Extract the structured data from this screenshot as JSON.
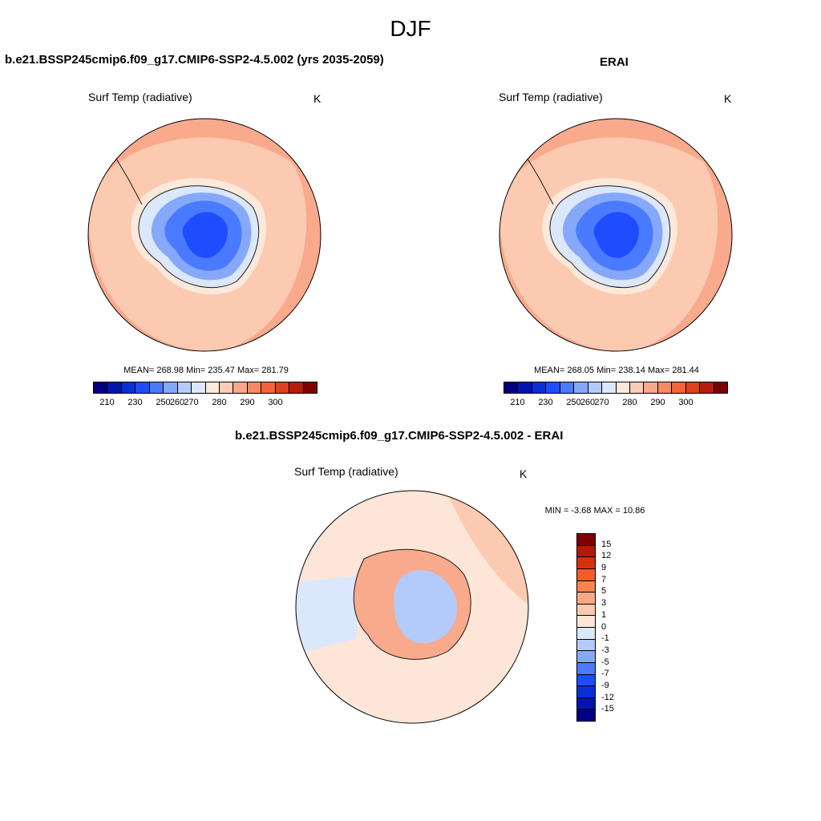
{
  "figure": {
    "season": "DJF"
  },
  "panels": {
    "model": {
      "title": "b.e21.BSSP245cmip6.f09_g17.CMIP6-SSP2-4.5.002 (yrs 2035-2059)",
      "variable": "Surf Temp (radiative)",
      "units": "K",
      "stats": "MEAN= 268.98  Min= 235.47  Max= 281.79"
    },
    "obs": {
      "title": "ERAI",
      "variable": "Surf Temp (radiative)",
      "units": "K",
      "stats": "MEAN= 268.05  Min= 238.14  Max= 281.44"
    },
    "diff": {
      "title": "b.e21.BSSP245cmip6.f09_g17.CMIP6-SSP2-4.5.002 - ERAI",
      "variable": "Surf Temp (radiative)",
      "units": "K",
      "stats": "MIN =  -3.68 MAX =  10.86"
    }
  },
  "colorbars": {
    "absolute": {
      "colors": [
        "#000080",
        "#0015b0",
        "#0a2fd9",
        "#1f4cff",
        "#4a7aff",
        "#86a8fb",
        "#b4cafa",
        "#dbe7fa",
        "#fde9dc",
        "#fcccb4",
        "#f9a98c",
        "#f78a64",
        "#f5633c",
        "#e0401e",
        "#b81d0c",
        "#7f0000"
      ],
      "ticks": [
        "210",
        "230",
        "250",
        "260",
        "270",
        "280",
        "290",
        "300"
      ]
    },
    "difference": {
      "colors": [
        "#7f0000",
        "#b21a06",
        "#d8300a",
        "#f55a28",
        "#f88250",
        "#faa884",
        "#fccab0",
        "#fde6d8",
        "#dbe7fa",
        "#b4cafa",
        "#86a8fb",
        "#4a7aff",
        "#1f4cff",
        "#0a2fd9",
        "#0015b0",
        "#000080"
      ],
      "labels": [
        "15",
        "12",
        "9",
        "7",
        "5",
        "3",
        "1",
        "0",
        "-1",
        "-3",
        "-5",
        "-7",
        "-9",
        "-12",
        "-15"
      ]
    }
  },
  "colors": {
    "ocean_cold": "#fccab0",
    "ocean_warm": "#f9a98c",
    "coast": "#1a1a1a",
    "ice_edge": "#dbe7fa",
    "ice_mid": "#86a8fb",
    "ice_core": "#1f4cff"
  }
}
